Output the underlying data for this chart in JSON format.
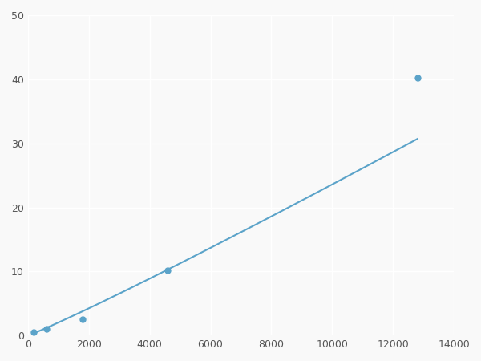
{
  "x_points": [
    200,
    600,
    1800,
    4600,
    12800
  ],
  "y_points": [
    0.5,
    1.0,
    2.5,
    10.2,
    40.2
  ],
  "xlim": [
    0,
    14000
  ],
  "ylim": [
    0,
    50
  ],
  "xticks": [
    0,
    2000,
    4000,
    6000,
    8000,
    10000,
    12000,
    14000
  ],
  "yticks": [
    0,
    10,
    20,
    30,
    40,
    50
  ],
  "line_color": "#5BA3C9",
  "marker_color": "#5BA3C9",
  "background_color": "#f9f9f9",
  "grid_color": "#ffffff",
  "marker_size": 5,
  "line_width": 1.5
}
